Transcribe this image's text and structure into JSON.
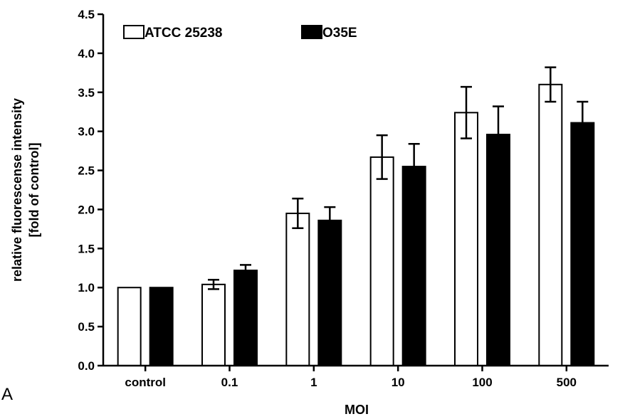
{
  "panel_letter": "A",
  "chart_data": {
    "type": "bar",
    "title": "",
    "xlabel": "MOI",
    "ylabel_lines": [
      "relative fluorescense intensity",
      "[fold of control]"
    ],
    "categories": [
      "control",
      "0.1",
      "1",
      "10",
      "100",
      "500"
    ],
    "ylim": [
      0,
      4.5
    ],
    "yticks": [
      "0.0",
      "0.5",
      "1.0",
      "1.5",
      "2.0",
      "2.5",
      "3.0",
      "3.5",
      "4.0",
      "4.5"
    ],
    "grid": false,
    "legend_position": "top-left",
    "series": [
      {
        "name": "ATCC 25238",
        "fill": "#ffffff",
        "values": [
          1.0,
          1.04,
          1.95,
          2.67,
          3.24,
          3.6
        ],
        "errors": [
          0,
          0.06,
          0.19,
          0.28,
          0.33,
          0.22
        ]
      },
      {
        "name": "O35E",
        "fill": "#000000",
        "values": [
          1.0,
          1.22,
          1.86,
          2.55,
          2.96,
          3.11
        ],
        "errors": [
          0,
          0.07,
          0.17,
          0.29,
          0.36,
          0.27
        ]
      }
    ]
  }
}
